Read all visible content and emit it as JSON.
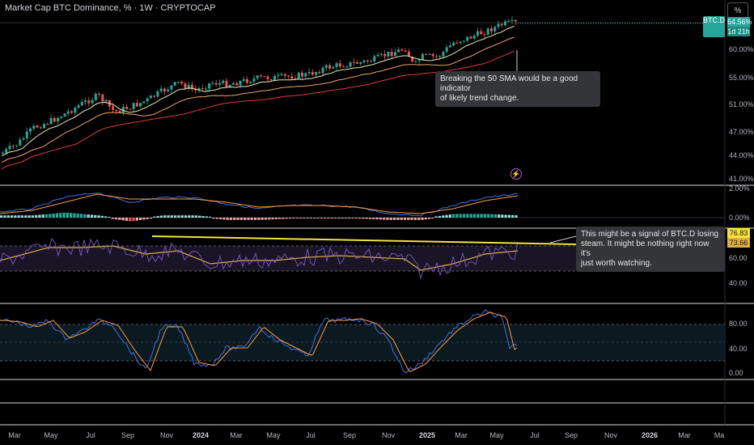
{
  "title": "Market Cap BTC Dominance, % · 1W · CRYPTOCAP",
  "scale_button": "%",
  "symbol_tag": "BTC.D",
  "price_tag": "64.56%",
  "countdown_tag": "1d 21h",
  "bolt_icon": "lightning-icon",
  "colors": {
    "up": "#26a69a",
    "down": "#ef5350",
    "sma_short": "#e8e8b0",
    "sma_mid": "#f0a35a",
    "sma_long": "#e03a3a",
    "macd": "#3f73e6",
    "signal": "#ff9a3c",
    "rsi": "#7e57c2",
    "rsi_ma": "#e0b040",
    "stoch_k": "#3f73e6",
    "stoch_d": "#ff9a3c",
    "trendline": "#f5e33a",
    "accent_tag": "#26a69a"
  },
  "price_axis": [
    "60.00%",
    "55.00%",
    "51.00%",
    "47.00%",
    "44.00%",
    "41.00%"
  ],
  "macd_axis": [
    "2.00%",
    "0.00%"
  ],
  "rsi_axis": [
    "60.00",
    "40.00"
  ],
  "rsi_tags": [
    "76.83",
    "73.66"
  ],
  "stoch_axis": [
    "80.00",
    "40.00",
    "0.00"
  ],
  "time_axis": [
    {
      "label": "Mar",
      "bold": false
    },
    {
      "label": "May",
      "bold": false
    },
    {
      "label": "Jul",
      "bold": false
    },
    {
      "label": "Sep",
      "bold": false
    },
    {
      "label": "Nov",
      "bold": false
    },
    {
      "label": "2024",
      "bold": true
    },
    {
      "label": "Mar",
      "bold": false
    },
    {
      "label": "May",
      "bold": false
    },
    {
      "label": "Jul",
      "bold": false
    },
    {
      "label": "Sep",
      "bold": false
    },
    {
      "label": "Nov",
      "bold": false
    },
    {
      "label": "2025",
      "bold": true
    },
    {
      "label": "Mar",
      "bold": false
    },
    {
      "label": "May",
      "bold": false
    },
    {
      "label": "Jul",
      "bold": false
    },
    {
      "label": "Sep",
      "bold": false
    },
    {
      "label": "Nov",
      "bold": false
    },
    {
      "label": "2026",
      "bold": true
    },
    {
      "label": "Mar",
      "bold": false
    },
    {
      "label": "Ma",
      "bold": false
    }
  ],
  "annotations": {
    "sma_note_line1": "Breaking the 50 SMA would be a good indicator",
    "sma_note_line2": "of likely trend change.",
    "rsi_note_line1": "This might be a signal of BTC.D losing",
    "rsi_note_line2": "steam.  It might be nothing right now it's",
    "rsi_note_line3": "just worth watching."
  }
}
